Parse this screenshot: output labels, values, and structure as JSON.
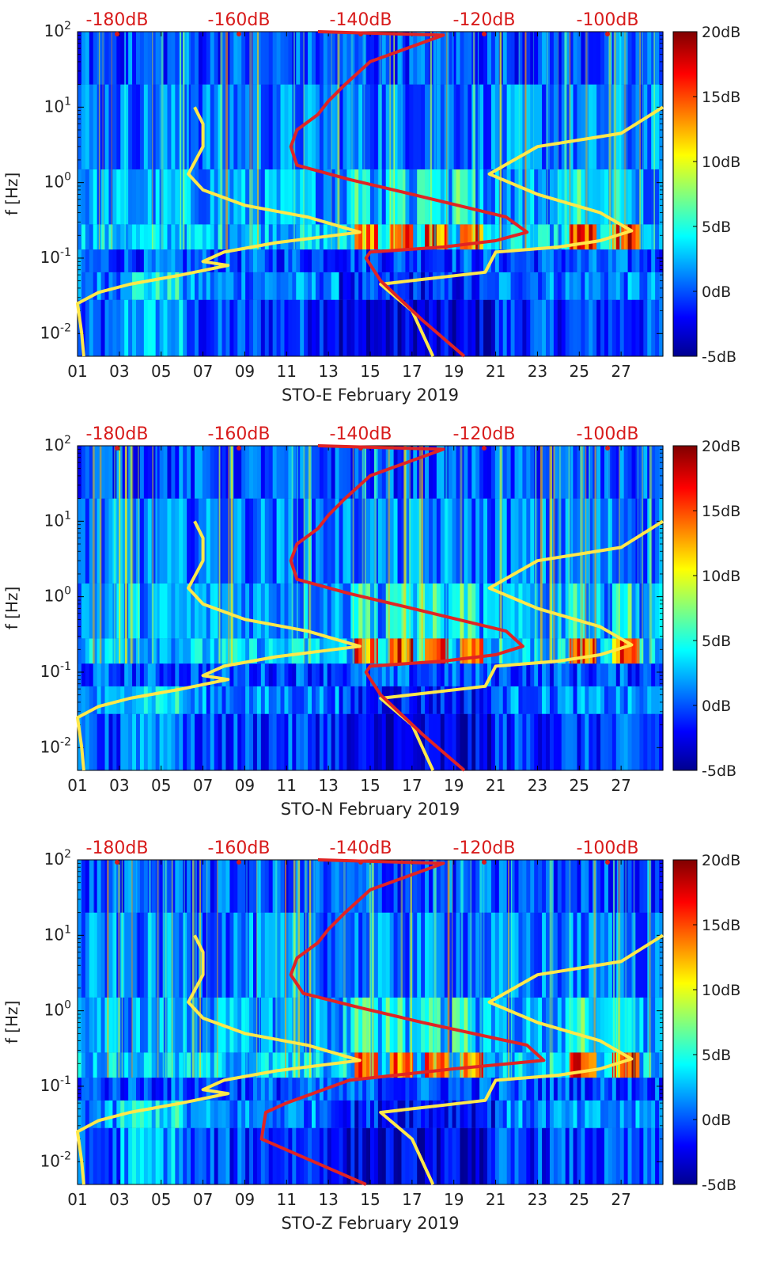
{
  "chart_data": [
    {
      "type": "heatmap",
      "title": "",
      "xlabel": "STO-E February 2019",
      "ylabel": "f [Hz]",
      "x_ticks": [
        "01",
        "03",
        "05",
        "07",
        "09",
        "11",
        "13",
        "15",
        "17",
        "19",
        "21",
        "23",
        "25",
        "27"
      ],
      "y_ticks": [
        "10^-2",
        "10^-1",
        "10^0",
        "10^1",
        "10^2"
      ],
      "y_scale": "log",
      "ylim": [
        0.005,
        100
      ],
      "xlim": [
        1,
        29
      ],
      "top_axis_ticks": [
        "-180dB",
        "-160dB",
        "-140dB",
        "-120dB",
        "-100dB"
      ],
      "colorbar_ticks": [
        "20dB",
        "15dB",
        "10dB",
        "5dB",
        "0dB",
        "-5dB"
      ],
      "colorbar_range": [
        -5,
        20
      ],
      "series": [
        {
          "color": "#ffe84a",
          "points": [
            [
              6.6,
              10
            ],
            [
              7.0,
              6
            ],
            [
              7.0,
              3
            ],
            [
              6.3,
              1.3
            ],
            [
              7.0,
              0.8
            ],
            [
              9.0,
              0.5
            ],
            [
              12.0,
              0.35
            ],
            [
              14.5,
              0.22
            ],
            [
              10.5,
              0.16
            ],
            [
              8.0,
              0.12
            ],
            [
              7.0,
              0.09
            ],
            [
              8.2,
              0.08
            ],
            [
              6.0,
              0.06
            ],
            [
              3.5,
              0.045
            ],
            [
              2.0,
              0.035
            ],
            [
              1.0,
              0.025
            ],
            [
              1.2,
              0.01
            ],
            [
              1.3,
              0.005
            ]
          ]
        },
        {
          "color": "#ffe84a",
          "points": [
            [
              29.0,
              10
            ],
            [
              27.0,
              4.5
            ],
            [
              23.0,
              3
            ],
            [
              20.7,
              1.3
            ],
            [
              23.0,
              0.7
            ],
            [
              26.0,
              0.4
            ],
            [
              27.5,
              0.23
            ],
            [
              26.0,
              0.17
            ],
            [
              24.0,
              0.14
            ],
            [
              21.0,
              0.12
            ],
            [
              20.5,
              0.065
            ],
            [
              15.5,
              0.045
            ],
            [
              17.0,
              0.02
            ],
            [
              18.0,
              0.005
            ]
          ]
        },
        {
          "color": "#e02424",
          "points": [
            [
              12.5,
              100
            ],
            [
              18.5,
              90
            ],
            [
              15.0,
              40
            ],
            [
              14.5,
              30
            ],
            [
              13.8,
              20
            ],
            [
              13.0,
              12
            ],
            [
              12.5,
              8
            ],
            [
              11.5,
              5
            ],
            [
              11.2,
              3
            ],
            [
              11.5,
              1.7
            ],
            [
              14.0,
              1.1
            ],
            [
              17.0,
              0.7
            ],
            [
              21.5,
              0.35
            ],
            [
              22.5,
              0.22
            ],
            [
              21.0,
              0.17
            ],
            [
              18.5,
              0.14
            ],
            [
              15.0,
              0.12
            ],
            [
              14.8,
              0.1
            ],
            [
              15.5,
              0.05
            ],
            [
              17.5,
              0.015
            ],
            [
              19.5,
              0.005
            ]
          ]
        }
      ]
    },
    {
      "type": "heatmap",
      "title": "",
      "xlabel": "STO-N February 2019",
      "ylabel": "f [Hz]",
      "x_ticks": [
        "01",
        "03",
        "05",
        "07",
        "09",
        "11",
        "13",
        "15",
        "17",
        "19",
        "21",
        "23",
        "25",
        "27"
      ],
      "y_ticks": [
        "10^-2",
        "10^-1",
        "10^0",
        "10^1",
        "10^2"
      ],
      "y_scale": "log",
      "ylim": [
        0.005,
        100
      ],
      "xlim": [
        1,
        29
      ],
      "top_axis_ticks": [
        "-180dB",
        "-160dB",
        "-140dB",
        "-120dB",
        "-100dB"
      ],
      "colorbar_ticks": [
        "20dB",
        "15dB",
        "10dB",
        "5dB",
        "0dB",
        "-5dB"
      ],
      "colorbar_range": [
        -5,
        20
      ],
      "series": [
        {
          "color": "#ffe84a",
          "points": [
            [
              6.6,
              10
            ],
            [
              7.0,
              6
            ],
            [
              7.0,
              3
            ],
            [
              6.3,
              1.3
            ],
            [
              7.0,
              0.8
            ],
            [
              9.0,
              0.5
            ],
            [
              12.0,
              0.35
            ],
            [
              14.5,
              0.22
            ],
            [
              10.5,
              0.16
            ],
            [
              8.0,
              0.12
            ],
            [
              7.0,
              0.09
            ],
            [
              8.2,
              0.08
            ],
            [
              6.0,
              0.06
            ],
            [
              3.5,
              0.045
            ],
            [
              2.0,
              0.035
            ],
            [
              1.0,
              0.025
            ],
            [
              1.2,
              0.01
            ],
            [
              1.3,
              0.005
            ]
          ]
        },
        {
          "color": "#ffe84a",
          "points": [
            [
              29.0,
              10
            ],
            [
              27.0,
              4.5
            ],
            [
              23.0,
              3
            ],
            [
              20.7,
              1.3
            ],
            [
              23.0,
              0.7
            ],
            [
              26.0,
              0.4
            ],
            [
              27.5,
              0.23
            ],
            [
              26.0,
              0.17
            ],
            [
              24.0,
              0.14
            ],
            [
              21.0,
              0.12
            ],
            [
              20.5,
              0.065
            ],
            [
              15.5,
              0.045
            ],
            [
              17.0,
              0.02
            ],
            [
              18.0,
              0.005
            ]
          ]
        },
        {
          "color": "#e02424",
          "points": [
            [
              12.5,
              100
            ],
            [
              18.5,
              90
            ],
            [
              15.0,
              40
            ],
            [
              14.5,
              30
            ],
            [
              13.8,
              20
            ],
            [
              13.0,
              12
            ],
            [
              12.5,
              8
            ],
            [
              11.5,
              5
            ],
            [
              11.2,
              3
            ],
            [
              11.5,
              1.7
            ],
            [
              14.0,
              1.1
            ],
            [
              17.0,
              0.7
            ],
            [
              21.5,
              0.35
            ],
            [
              22.3,
              0.22
            ],
            [
              21.0,
              0.17
            ],
            [
              18.5,
              0.14
            ],
            [
              15.0,
              0.12
            ],
            [
              14.8,
              0.1
            ],
            [
              15.5,
              0.05
            ],
            [
              17.5,
              0.015
            ],
            [
              19.5,
              0.005
            ]
          ]
        }
      ]
    },
    {
      "type": "heatmap",
      "title": "",
      "xlabel": "STO-Z February 2019",
      "ylabel": "f [Hz]",
      "x_ticks": [
        "01",
        "03",
        "05",
        "07",
        "09",
        "11",
        "13",
        "15",
        "17",
        "19",
        "21",
        "23",
        "25",
        "27"
      ],
      "y_ticks": [
        "10^-2",
        "10^-1",
        "10^0",
        "10^1",
        "10^2"
      ],
      "y_scale": "log",
      "ylim": [
        0.005,
        100
      ],
      "xlim": [
        1,
        29
      ],
      "top_axis_ticks": [
        "-180dB",
        "-160dB",
        "-140dB",
        "-120dB",
        "-100dB"
      ],
      "colorbar_ticks": [
        "20dB",
        "15dB",
        "10dB",
        "5dB",
        "0dB",
        "-5dB"
      ],
      "colorbar_range": [
        -5,
        20
      ],
      "series": [
        {
          "color": "#ffe84a",
          "points": [
            [
              6.6,
              10
            ],
            [
              7.0,
              6
            ],
            [
              7.0,
              3
            ],
            [
              6.3,
              1.3
            ],
            [
              7.0,
              0.8
            ],
            [
              9.0,
              0.5
            ],
            [
              12.0,
              0.35
            ],
            [
              14.5,
              0.22
            ],
            [
              10.5,
              0.16
            ],
            [
              8.0,
              0.12
            ],
            [
              7.0,
              0.09
            ],
            [
              8.2,
              0.08
            ],
            [
              6.0,
              0.06
            ],
            [
              3.5,
              0.045
            ],
            [
              2.0,
              0.035
            ],
            [
              1.0,
              0.025
            ],
            [
              1.2,
              0.01
            ],
            [
              1.3,
              0.005
            ]
          ]
        },
        {
          "color": "#ffe84a",
          "points": [
            [
              29.0,
              10
            ],
            [
              27.0,
              4.5
            ],
            [
              23.0,
              3
            ],
            [
              20.7,
              1.3
            ],
            [
              23.0,
              0.7
            ],
            [
              26.0,
              0.4
            ],
            [
              27.5,
              0.23
            ],
            [
              26.0,
              0.17
            ],
            [
              24.0,
              0.14
            ],
            [
              21.0,
              0.12
            ],
            [
              20.5,
              0.065
            ],
            [
              15.5,
              0.045
            ],
            [
              17.0,
              0.02
            ],
            [
              18.0,
              0.005
            ]
          ]
        },
        {
          "color": "#e02424",
          "points": [
            [
              12.5,
              100
            ],
            [
              18.5,
              90
            ],
            [
              15.0,
              40
            ],
            [
              14.5,
              30
            ],
            [
              13.8,
              20
            ],
            [
              13.0,
              12
            ],
            [
              12.5,
              8
            ],
            [
              11.5,
              5
            ],
            [
              11.2,
              3
            ],
            [
              11.8,
              1.7
            ],
            [
              14.5,
              1.1
            ],
            [
              17.5,
              0.7
            ],
            [
              22.5,
              0.35
            ],
            [
              23.3,
              0.22
            ],
            [
              19.0,
              0.17
            ],
            [
              14.0,
              0.12
            ],
            [
              11.0,
              0.06
            ],
            [
              10.0,
              0.045
            ],
            [
              9.8,
              0.02
            ],
            [
              14.8,
              0.005
            ]
          ]
        }
      ]
    }
  ]
}
